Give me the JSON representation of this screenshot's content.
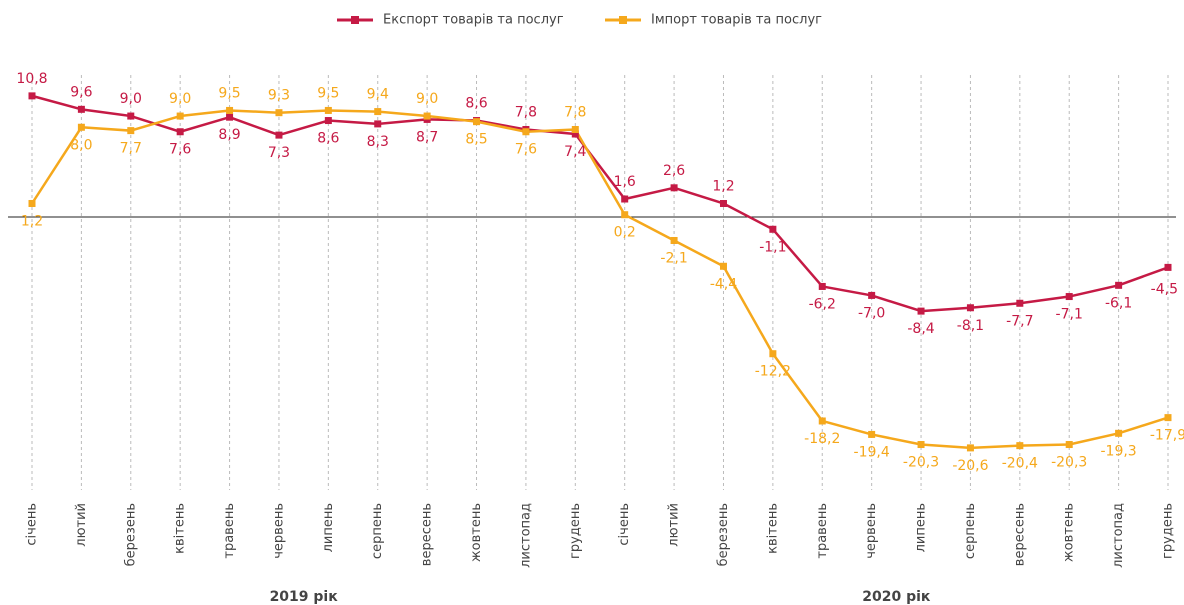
{
  "chart_data": {
    "type": "line",
    "categories": [
      "січень",
      "лютий",
      "березень",
      "квітень",
      "травень",
      "червень",
      "липень",
      "серпень",
      "вересень",
      "жовтень",
      "листопад",
      "грудень",
      "січень",
      "лютий",
      "березень",
      "квітень",
      "травень",
      "червень",
      "липень",
      "серпень",
      "вересень",
      "жовтень",
      "листопад",
      "грудень"
    ],
    "x_groups": [
      "2019 рік",
      "2020 рік"
    ],
    "series": [
      {
        "name": "Експорт товарів та послуг",
        "color": "#c51a45",
        "values": [
          10.8,
          9.6,
          9.0,
          7.6,
          8.9,
          7.3,
          8.6,
          8.3,
          8.7,
          8.6,
          7.8,
          7.4,
          1.6,
          2.6,
          1.2,
          -1.1,
          -6.2,
          -7.0,
          -8.4,
          -8.1,
          -7.7,
          -7.1,
          -6.1,
          -4.5
        ],
        "value_labels": [
          "10,8",
          "9,6",
          "9,0",
          "7,6",
          "8,9",
          "7,3",
          "8,6",
          "8,3",
          "8,7",
          "8,6",
          "7,8",
          "7,4",
          "1,6",
          "2,6",
          "1,2",
          "-1,1",
          "-6,2",
          "-7,0",
          "-8,4",
          "-8,1",
          "-7,7",
          "-7,1",
          "-6,1",
          "-4,5"
        ]
      },
      {
        "name": "Імпорт товарів та послуг",
        "color": "#f5a81c",
        "values": [
          1.2,
          8.0,
          7.7,
          9.0,
          9.5,
          9.3,
          9.5,
          9.4,
          9.0,
          8.5,
          7.6,
          7.8,
          0.2,
          -2.1,
          -4.4,
          -12.2,
          -18.2,
          -19.4,
          -20.3,
          -20.6,
          -20.4,
          -20.3,
          -19.3,
          -17.9
        ],
        "value_labels": [
          "1,2",
          "8,0",
          "7,7",
          "9,0",
          "9,5",
          "9,3",
          "9,5",
          "9,4",
          "9,0",
          "8,5",
          "7,6",
          "7,8",
          "0,2",
          "-2,1",
          "-4,4",
          "-12,2",
          "-18,2",
          "-19,4",
          "-20,3",
          "-20,6",
          "-20,4",
          "-20,3",
          "-19,3",
          "-17,9"
        ]
      }
    ],
    "ylim": [
      -24,
      14
    ],
    "legend": "top"
  }
}
